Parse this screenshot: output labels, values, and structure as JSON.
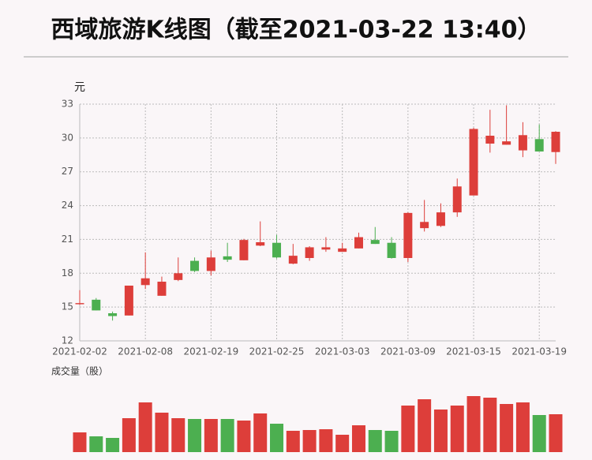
{
  "chart_data": {
    "type": "candlestick",
    "title": "西域旅游K线图（截至2021-03-22 13:40）",
    "y_label": "元",
    "volume_label": "成交量（股）",
    "categories": [
      "2021-02-02",
      null,
      null,
      null,
      "2021-02-08",
      null,
      null,
      null,
      "2021-02-19",
      null,
      null,
      null,
      "2021-02-25",
      null,
      null,
      null,
      "2021-03-03",
      null,
      null,
      null,
      "2021-03-09",
      null,
      null,
      null,
      "2021-03-15",
      null,
      null,
      null,
      "2021-03-19",
      null
    ],
    "open": [
      15.25,
      15.65,
      14.45,
      14.25,
      16.95,
      16.0,
      17.4,
      19.1,
      18.2,
      19.5,
      19.15,
      20.45,
      20.7,
      18.85,
      19.35,
      20.1,
      19.9,
      20.2,
      20.95,
      20.7,
      19.35,
      22.0,
      22.2,
      23.4,
      24.9,
      29.5,
      29.4,
      28.9,
      29.9,
      28.75
    ],
    "close": [
      15.35,
      14.7,
      14.2,
      16.9,
      17.55,
      17.25,
      18.0,
      18.2,
      19.4,
      19.2,
      20.95,
      20.75,
      19.4,
      19.55,
      20.3,
      20.3,
      20.2,
      21.2,
      20.6,
      19.35,
      23.35,
      22.55,
      23.4,
      25.7,
      30.8,
      30.2,
      29.7,
      30.25,
      28.8,
      30.55
    ],
    "high": [
      16.5,
      15.8,
      14.6,
      16.9,
      19.85,
      17.7,
      19.4,
      19.4,
      20.0,
      20.7,
      21.05,
      22.6,
      21.4,
      20.6,
      20.4,
      21.2,
      20.7,
      21.6,
      22.1,
      21.2,
      23.4,
      24.5,
      24.2,
      26.4,
      30.9,
      32.5,
      32.9,
      31.4,
      31.2,
      30.6
    ],
    "low": [
      15.2,
      14.7,
      13.8,
      14.25,
      16.6,
      16.0,
      17.3,
      18.1,
      17.8,
      19.0,
      19.15,
      20.4,
      19.3,
      18.8,
      19.1,
      19.9,
      19.9,
      20.2,
      20.6,
      19.3,
      19.0,
      21.7,
      22.1,
      23.0,
      24.9,
      28.7,
      29.4,
      28.3,
      28.8,
      27.7
    ],
    "volume": [
      25,
      20,
      18,
      43,
      63,
      50,
      43,
      42,
      42,
      42,
      40,
      49,
      36,
      27,
      28,
      29,
      22,
      34,
      28,
      27,
      59,
      67,
      54,
      59,
      71,
      69,
      61,
      63,
      47,
      48
    ],
    "ylim": [
      12,
      33
    ],
    "yticks": [
      12,
      15,
      18,
      21,
      24,
      27,
      30,
      33
    ],
    "volume_ylim": [
      0,
      80
    ],
    "up_color": "#dd3e3a",
    "down_color": "#4caf50",
    "grid": true
  }
}
